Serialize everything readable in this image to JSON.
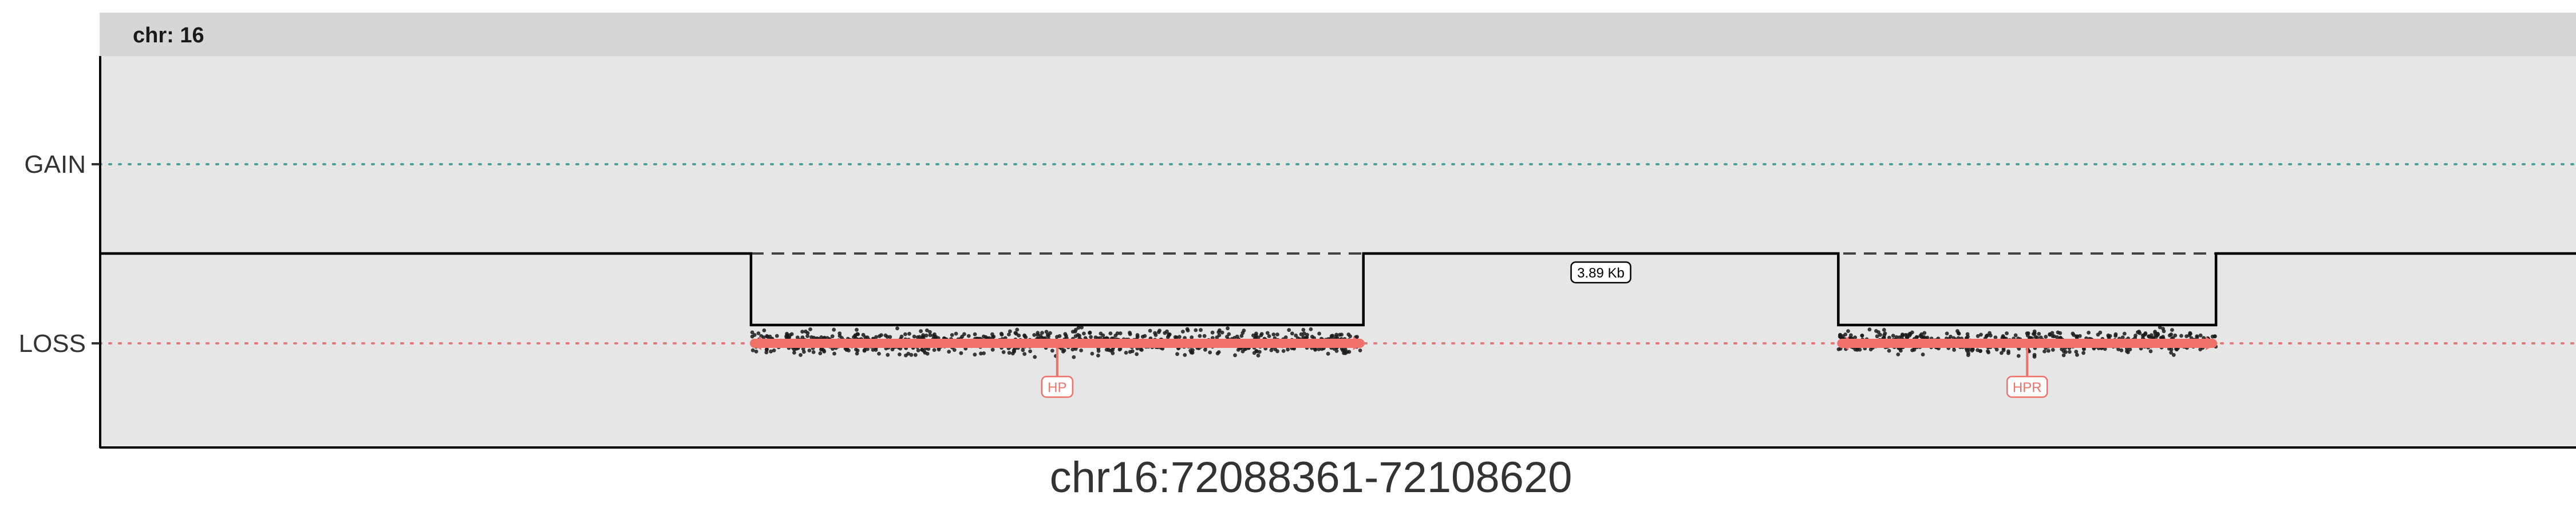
{
  "chart_data": {
    "type": "scatter",
    "facet_label": "chr: 16",
    "xlabel": "chr16:72088361-72108620",
    "y_categories": [
      "GAIN",
      "LOSS"
    ],
    "region": {
      "chrom": "chr16",
      "start": 72088361,
      "end": 72108620
    },
    "deletion_segments": [
      {
        "start": 72093690,
        "end": 72098700,
        "state": "LOSS",
        "gene": "HP"
      },
      {
        "start": 72102585,
        "end": 72105675,
        "state": "LOSS",
        "gene": "HPR"
      }
    ],
    "gap": {
      "start": 72098700,
      "end": 72102585,
      "label": "3.89 Kb"
    },
    "gridline_colors": {
      "GAIN": "#4aa3a0",
      "LOSS": "#e07a7a"
    },
    "gene_color": "#f07167",
    "point_color": "#1a1a1a",
    "panel_background": "#e6e6e6",
    "strip_background": "#d6d6d6"
  }
}
